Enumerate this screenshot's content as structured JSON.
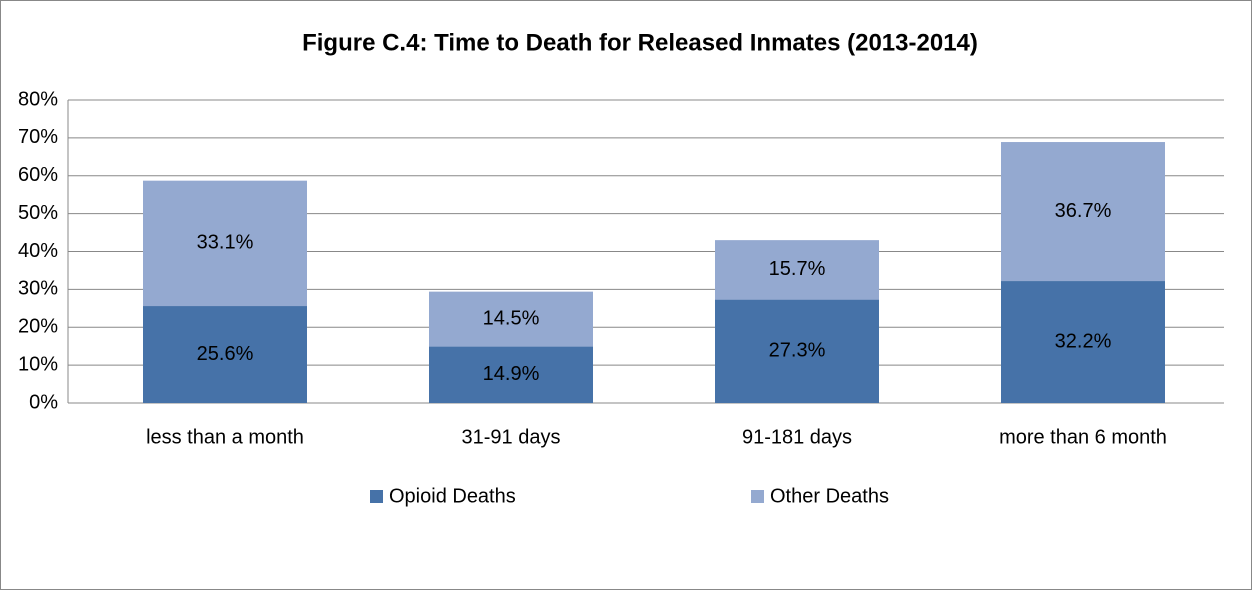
{
  "chart_data": {
    "type": "stacked_bar",
    "title": "Figure C.4: Time to Death for Released Inmates (2013-2014)",
    "categories": [
      "less than a month",
      "31-91 days",
      "91-181 days",
      "more than 6 month"
    ],
    "series": [
      {
        "name": "Opioid Deaths",
        "color": "#4672a8",
        "values": [
          25.6,
          14.9,
          27.3,
          32.2
        ],
        "value_labels": [
          "25.6%",
          "14.9%",
          "27.3%",
          "32.2%"
        ]
      },
      {
        "name": "Other Deaths",
        "color": "#94a9d0",
        "values": [
          33.1,
          14.5,
          15.7,
          36.7
        ],
        "value_labels": [
          "33.1%",
          "14.5%",
          "15.7%",
          "36.7%"
        ]
      }
    ],
    "ylim": [
      0,
      80
    ],
    "yticks": [
      {
        "value": 0,
        "label": "0%"
      },
      {
        "value": 10,
        "label": "10%"
      },
      {
        "value": 20,
        "label": "20%"
      },
      {
        "value": 30,
        "label": "30%"
      },
      {
        "value": 40,
        "label": "40%"
      },
      {
        "value": 50,
        "label": "50%"
      },
      {
        "value": 60,
        "label": "60%"
      },
      {
        "value": 70,
        "label": "70%"
      },
      {
        "value": 80,
        "label": "80%"
      }
    ],
    "grid": true,
    "legend": "bottom"
  }
}
